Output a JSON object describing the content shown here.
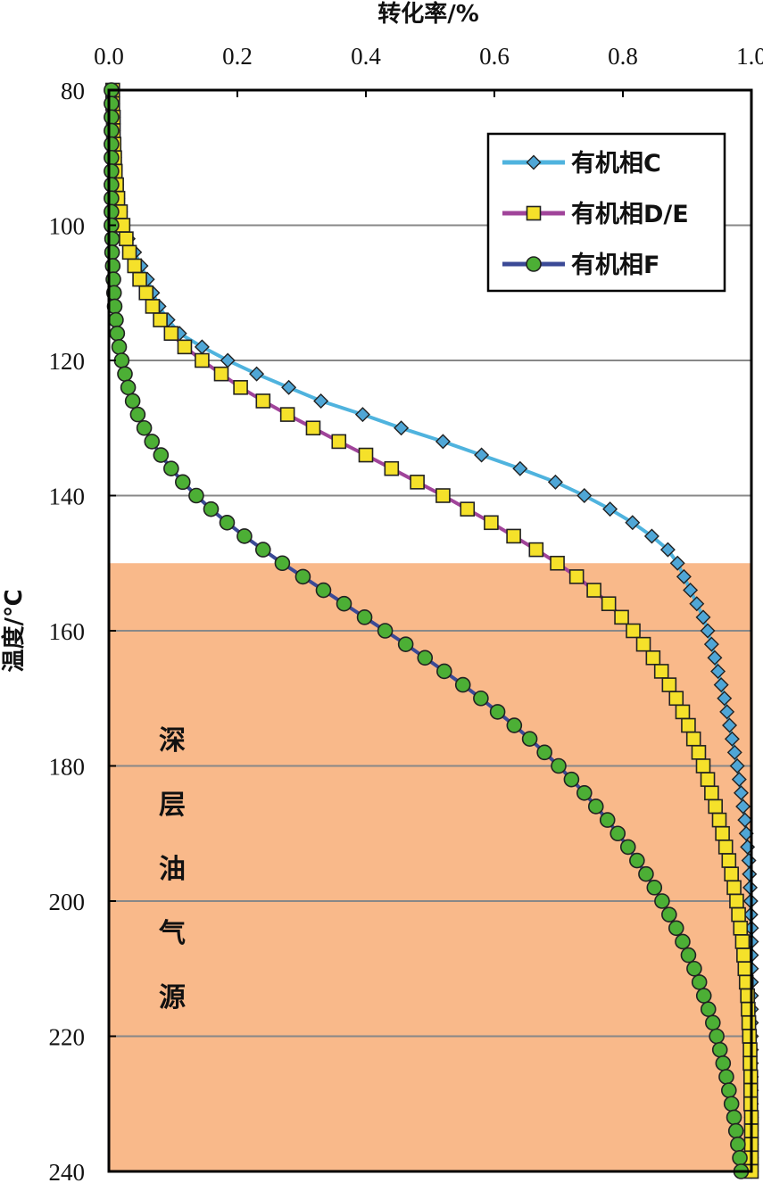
{
  "chart_data": {
    "type": "line",
    "xlabel": "转化率/%",
    "ylabel": "温度/℃",
    "xlim": [
      0,
      1.0
    ],
    "ylim": [
      80,
      240
    ],
    "y_inverted": true,
    "x_axis_position": "top",
    "xticks": [
      "0.0",
      "0.2",
      "0.4",
      "0.6",
      "0.8",
      "1.0"
    ],
    "yticks": [
      "80",
      "100",
      "120",
      "140",
      "160",
      "180",
      "200",
      "220",
      "240"
    ],
    "grid": "horizontal",
    "legend_position": "top-right",
    "shaded_region": {
      "y_from": 150,
      "y_to": 240,
      "color": "#F9B98A",
      "label": "深层油气源"
    },
    "series": [
      {
        "name": "有机相C",
        "line_color": "#4FB3DE",
        "marker": "diamond",
        "marker_color": "#4FA6D6",
        "points": [
          [
            0.006,
            80
          ],
          [
            0.006,
            82
          ],
          [
            0.007,
            84
          ],
          [
            0.007,
            86
          ],
          [
            0.008,
            88
          ],
          [
            0.009,
            90
          ],
          [
            0.01,
            92
          ],
          [
            0.012,
            94
          ],
          [
            0.014,
            96
          ],
          [
            0.018,
            98
          ],
          [
            0.022,
            100
          ],
          [
            0.03,
            102
          ],
          [
            0.04,
            104
          ],
          [
            0.05,
            106
          ],
          [
            0.06,
            108
          ],
          [
            0.068,
            110
          ],
          [
            0.078,
            112
          ],
          [
            0.092,
            114
          ],
          [
            0.11,
            116
          ],
          [
            0.145,
            118
          ],
          [
            0.185,
            120
          ],
          [
            0.23,
            122
          ],
          [
            0.28,
            124
          ],
          [
            0.33,
            126
          ],
          [
            0.395,
            128
          ],
          [
            0.455,
            130
          ],
          [
            0.52,
            132
          ],
          [
            0.58,
            134
          ],
          [
            0.64,
            136
          ],
          [
            0.695,
            138
          ],
          [
            0.74,
            140
          ],
          [
            0.78,
            142
          ],
          [
            0.815,
            144
          ],
          [
            0.845,
            146
          ],
          [
            0.87,
            148
          ],
          [
            0.885,
            150
          ],
          [
            0.895,
            152
          ],
          [
            0.905,
            154
          ],
          [
            0.915,
            156
          ],
          [
            0.925,
            158
          ],
          [
            0.932,
            160
          ],
          [
            0.938,
            162
          ],
          [
            0.943,
            164
          ],
          [
            0.948,
            166
          ],
          [
            0.953,
            168
          ],
          [
            0.958,
            170
          ],
          [
            0.962,
            172
          ],
          [
            0.966,
            174
          ],
          [
            0.97,
            176
          ],
          [
            0.974,
            178
          ],
          [
            0.978,
            180
          ],
          [
            0.981,
            182
          ],
          [
            0.984,
            184
          ],
          [
            0.987,
            186
          ],
          [
            0.99,
            188
          ],
          [
            0.992,
            190
          ],
          [
            0.994,
            192
          ],
          [
            0.996,
            194
          ],
          [
            0.997,
            196
          ],
          [
            0.998,
            198
          ],
          [
            0.999,
            200
          ],
          [
            0.999,
            202
          ],
          [
            1.0,
            204
          ],
          [
            1.0,
            206
          ],
          [
            1.0,
            208
          ],
          [
            1.0,
            210
          ],
          [
            1.0,
            212
          ],
          [
            1.0,
            214
          ],
          [
            1.0,
            216
          ],
          [
            1.0,
            218
          ],
          [
            1.0,
            220
          ],
          [
            1.0,
            222
          ],
          [
            1.0,
            224
          ],
          [
            1.0,
            226
          ],
          [
            1.0,
            228
          ],
          [
            1.0,
            230
          ],
          [
            1.0,
            232
          ],
          [
            1.0,
            234
          ],
          [
            1.0,
            236
          ],
          [
            1.0,
            238
          ],
          [
            1.0,
            240
          ]
        ]
      },
      {
        "name": "有机相D/E",
        "line_color": "#A0449A",
        "marker": "square",
        "marker_color": "#F5E12A",
        "points": [
          [
            0.006,
            80
          ],
          [
            0.006,
            82
          ],
          [
            0.007,
            84
          ],
          [
            0.007,
            86
          ],
          [
            0.008,
            88
          ],
          [
            0.009,
            90
          ],
          [
            0.01,
            92
          ],
          [
            0.012,
            94
          ],
          [
            0.014,
            96
          ],
          [
            0.018,
            98
          ],
          [
            0.022,
            100
          ],
          [
            0.027,
            102
          ],
          [
            0.032,
            104
          ],
          [
            0.04,
            106
          ],
          [
            0.048,
            108
          ],
          [
            0.058,
            110
          ],
          [
            0.068,
            112
          ],
          [
            0.08,
            114
          ],
          [
            0.097,
            116
          ],
          [
            0.118,
            118
          ],
          [
            0.145,
            120
          ],
          [
            0.175,
            122
          ],
          [
            0.205,
            124
          ],
          [
            0.24,
            126
          ],
          [
            0.278,
            128
          ],
          [
            0.318,
            130
          ],
          [
            0.358,
            132
          ],
          [
            0.4,
            134
          ],
          [
            0.44,
            136
          ],
          [
            0.48,
            138
          ],
          [
            0.52,
            140
          ],
          [
            0.558,
            142
          ],
          [
            0.595,
            144
          ],
          [
            0.63,
            146
          ],
          [
            0.665,
            148
          ],
          [
            0.698,
            150
          ],
          [
            0.728,
            152
          ],
          [
            0.755,
            154
          ],
          [
            0.778,
            156
          ],
          [
            0.798,
            158
          ],
          [
            0.816,
            160
          ],
          [
            0.832,
            162
          ],
          [
            0.847,
            164
          ],
          [
            0.86,
            166
          ],
          [
            0.872,
            168
          ],
          [
            0.883,
            170
          ],
          [
            0.893,
            172
          ],
          [
            0.902,
            174
          ],
          [
            0.91,
            176
          ],
          [
            0.918,
            178
          ],
          [
            0.925,
            180
          ],
          [
            0.932,
            182
          ],
          [
            0.938,
            184
          ],
          [
            0.944,
            186
          ],
          [
            0.95,
            188
          ],
          [
            0.955,
            190
          ],
          [
            0.96,
            192
          ],
          [
            0.965,
            194
          ],
          [
            0.969,
            196
          ],
          [
            0.973,
            198
          ],
          [
            0.977,
            200
          ],
          [
            0.98,
            202
          ],
          [
            0.983,
            204
          ],
          [
            0.986,
            206
          ],
          [
            0.988,
            208
          ],
          [
            0.99,
            210
          ],
          [
            0.992,
            212
          ],
          [
            0.994,
            214
          ],
          [
            0.995,
            216
          ],
          [
            0.996,
            218
          ],
          [
            0.997,
            220
          ],
          [
            0.998,
            222
          ],
          [
            0.998,
            224
          ],
          [
            0.999,
            226
          ],
          [
            0.999,
            228
          ],
          [
            0.999,
            230
          ],
          [
            1.0,
            232
          ],
          [
            1.0,
            234
          ],
          [
            1.0,
            236
          ],
          [
            1.0,
            238
          ],
          [
            1.0,
            240
          ]
        ]
      },
      {
        "name": "有机相F",
        "line_color": "#3B4A96",
        "marker": "circle",
        "marker_color": "#4CAF35",
        "points": [
          [
            0.004,
            80
          ],
          [
            0.004,
            82
          ],
          [
            0.004,
            84
          ],
          [
            0.004,
            86
          ],
          [
            0.004,
            88
          ],
          [
            0.004,
            90
          ],
          [
            0.004,
            92
          ],
          [
            0.004,
            94
          ],
          [
            0.004,
            96
          ],
          [
            0.004,
            98
          ],
          [
            0.004,
            100
          ],
          [
            0.005,
            102
          ],
          [
            0.005,
            104
          ],
          [
            0.006,
            106
          ],
          [
            0.007,
            108
          ],
          [
            0.008,
            110
          ],
          [
            0.009,
            112
          ],
          [
            0.011,
            114
          ],
          [
            0.013,
            116
          ],
          [
            0.016,
            118
          ],
          [
            0.02,
            120
          ],
          [
            0.025,
            122
          ],
          [
            0.03,
            124
          ],
          [
            0.037,
            126
          ],
          [
            0.045,
            128
          ],
          [
            0.055,
            130
          ],
          [
            0.067,
            132
          ],
          [
            0.081,
            134
          ],
          [
            0.097,
            136
          ],
          [
            0.115,
            138
          ],
          [
            0.136,
            140
          ],
          [
            0.159,
            142
          ],
          [
            0.184,
            144
          ],
          [
            0.211,
            146
          ],
          [
            0.24,
            148
          ],
          [
            0.27,
            150
          ],
          [
            0.302,
            152
          ],
          [
            0.334,
            154
          ],
          [
            0.366,
            156
          ],
          [
            0.398,
            158
          ],
          [
            0.43,
            160
          ],
          [
            0.462,
            162
          ],
          [
            0.492,
            164
          ],
          [
            0.522,
            166
          ],
          [
            0.551,
            168
          ],
          [
            0.579,
            170
          ],
          [
            0.605,
            172
          ],
          [
            0.631,
            174
          ],
          [
            0.655,
            176
          ],
          [
            0.678,
            178
          ],
          [
            0.7,
            180
          ],
          [
            0.72,
            182
          ],
          [
            0.74,
            184
          ],
          [
            0.758,
            186
          ],
          [
            0.776,
            188
          ],
          [
            0.792,
            190
          ],
          [
            0.808,
            192
          ],
          [
            0.822,
            194
          ],
          [
            0.836,
            196
          ],
          [
            0.849,
            198
          ],
          [
            0.861,
            200
          ],
          [
            0.872,
            202
          ],
          [
            0.883,
            204
          ],
          [
            0.893,
            206
          ],
          [
            0.902,
            208
          ],
          [
            0.911,
            210
          ],
          [
            0.919,
            212
          ],
          [
            0.926,
            214
          ],
          [
            0.933,
            216
          ],
          [
            0.94,
            218
          ],
          [
            0.946,
            220
          ],
          [
            0.951,
            222
          ],
          [
            0.956,
            224
          ],
          [
            0.961,
            226
          ],
          [
            0.965,
            228
          ],
          [
            0.969,
            230
          ],
          [
            0.973,
            232
          ],
          [
            0.976,
            234
          ],
          [
            0.979,
            236
          ],
          [
            0.982,
            238
          ],
          [
            0.984,
            240
          ]
        ]
      }
    ]
  }
}
